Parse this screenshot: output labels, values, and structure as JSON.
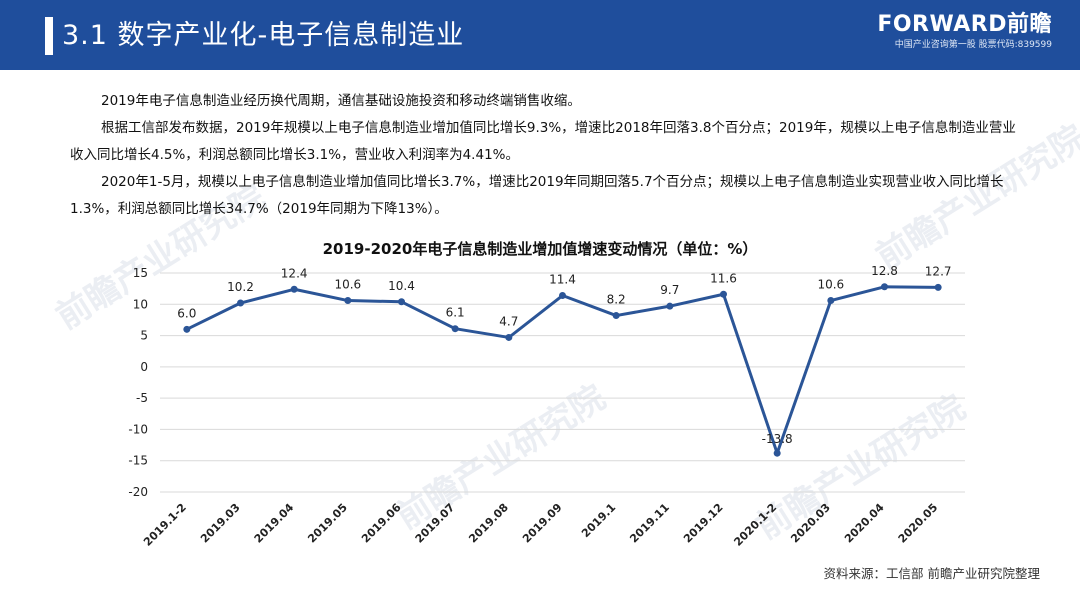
{
  "header": {
    "title": "3.1 数字产业化-电子信息制造业",
    "logo_main": "FORWARD前瞻",
    "logo_sub": "中国产业咨询第一股 股票代码:839599"
  },
  "paragraphs": [
    "2019年电子信息制造业经历换代周期，通信基础设施投资和移动终端销售收缩。",
    "根据工信部发布数据，2019年规模以上电子信息制造业增加值同比增长9.3%，增速比2018年回落3.8个百分点；2019年，规模以上电子信息制造业营业收入同比增长4.5%，利润总额同比增长3.1%，营业收入利润率为4.41%。",
    "2020年1-5月，规模以上电子信息制造业增加值同比增长3.7%，增速比2019年同期回落5.7个百分点；规模以上电子信息制造业实现营业收入同比增长1.3%，利润总额同比增长34.7%（2019年同期为下降13%）。"
  ],
  "watermarks": [
    "前瞻产业研究院",
    "前瞻产业研究院",
    "前瞻产业研究院",
    "前瞻产业研究院"
  ],
  "source": "资料来源：工信部 前瞻产业研究院整理",
  "chart_data": {
    "type": "line",
    "title": "2019-2020年电子信息制造业增加值增速变动情况（单位：%）",
    "categories": [
      "2019.1-2",
      "2019.03",
      "2019.04",
      "2019.05",
      "2019.06",
      "2019.07",
      "2019.08",
      "2019.09",
      "2019.1",
      "2019.11",
      "2019.12",
      "2020.1-2",
      "2020.03",
      "2020.04",
      "2020.05"
    ],
    "values": [
      6.0,
      10.2,
      12.4,
      10.6,
      10.4,
      6.1,
      4.7,
      11.4,
      8.2,
      9.7,
      11.6,
      -13.8,
      10.6,
      12.8,
      12.7
    ],
    "labels": [
      "6.0",
      "10.2",
      "12.4",
      "10.6",
      "10.4",
      "6.1",
      "4.7",
      "11.4",
      "8.2",
      "9.7",
      "11.6",
      "-13.8",
      "10.6",
      "12.8",
      "12.7"
    ],
    "ylim": [
      -20,
      15
    ],
    "yticks": [
      "15",
      "10",
      "5",
      "0",
      "-5",
      "-10",
      "-15",
      "-20"
    ],
    "ytick_values": [
      15,
      10,
      5,
      0,
      -5,
      -10,
      -15,
      -20
    ],
    "color": "#2b5597",
    "grid": true
  }
}
